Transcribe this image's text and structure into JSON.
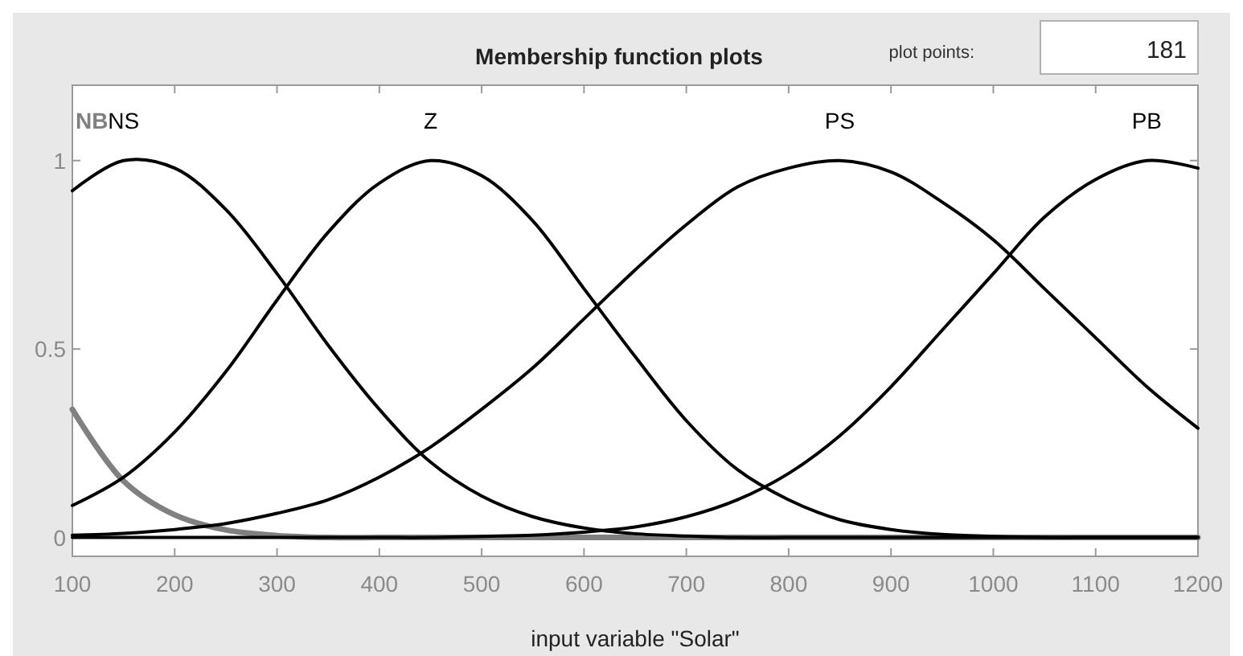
{
  "chart_data": {
    "type": "line",
    "title": "Membership function plots",
    "xlabel": "input variable \"Solar\"",
    "annotations": [
      "plot points:",
      "181"
    ],
    "x": [
      100,
      150,
      200,
      250,
      300,
      350,
      400,
      450,
      500,
      550,
      600,
      650,
      700,
      750,
      800,
      850,
      900,
      950,
      1000,
      1050,
      1100,
      1150,
      1200
    ],
    "series": [
      {
        "name": "NB",
        "color": "#808080",
        "values": [
          0.34,
          0.15,
          0.06,
          0.02,
          0.005,
          0,
          0,
          0,
          0,
          0,
          0,
          0,
          0,
          0,
          0,
          0,
          0,
          0,
          0,
          0,
          0,
          0,
          0
        ]
      },
      {
        "name": "NS",
        "color": "#000000",
        "values": [
          0.92,
          1.0,
          0.98,
          0.87,
          0.7,
          0.51,
          0.34,
          0.2,
          0.11,
          0.055,
          0.025,
          0.01,
          0.004,
          0,
          0,
          0,
          0,
          0,
          0,
          0,
          0,
          0,
          0
        ]
      },
      {
        "name": "Z",
        "color": "#000000",
        "values": [
          0.085,
          0.16,
          0.28,
          0.44,
          0.63,
          0.81,
          0.94,
          1.0,
          0.96,
          0.84,
          0.66,
          0.48,
          0.31,
          0.18,
          0.1,
          0.047,
          0.021,
          0.008,
          0.003,
          0,
          0,
          0,
          0
        ]
      },
      {
        "name": "PS",
        "color": "#000000",
        "values": [
          0.006,
          0.011,
          0.021,
          0.037,
          0.064,
          0.1,
          0.16,
          0.24,
          0.34,
          0.45,
          0.58,
          0.71,
          0.83,
          0.93,
          0.98,
          1.0,
          0.97,
          0.89,
          0.79,
          0.66,
          0.53,
          0.4,
          0.29
        ]
      },
      {
        "name": "PB",
        "color": "#000000",
        "values": [
          0,
          0,
          0,
          0,
          0,
          0,
          0,
          0,
          0.003,
          0.006,
          0.014,
          0.028,
          0.055,
          0.1,
          0.17,
          0.27,
          0.4,
          0.55,
          0.7,
          0.85,
          0.95,
          1.0,
          0.98
        ]
      }
    ],
    "xlim": [
      100,
      1200
    ],
    "ylim": [
      -0.05,
      1.2
    ],
    "xticks": [
      100,
      200,
      300,
      400,
      500,
      600,
      700,
      800,
      900,
      1000,
      1100,
      1200
    ],
    "yticks": [
      0,
      0.5,
      1
    ],
    "grid": false,
    "line_style": "solid"
  }
}
